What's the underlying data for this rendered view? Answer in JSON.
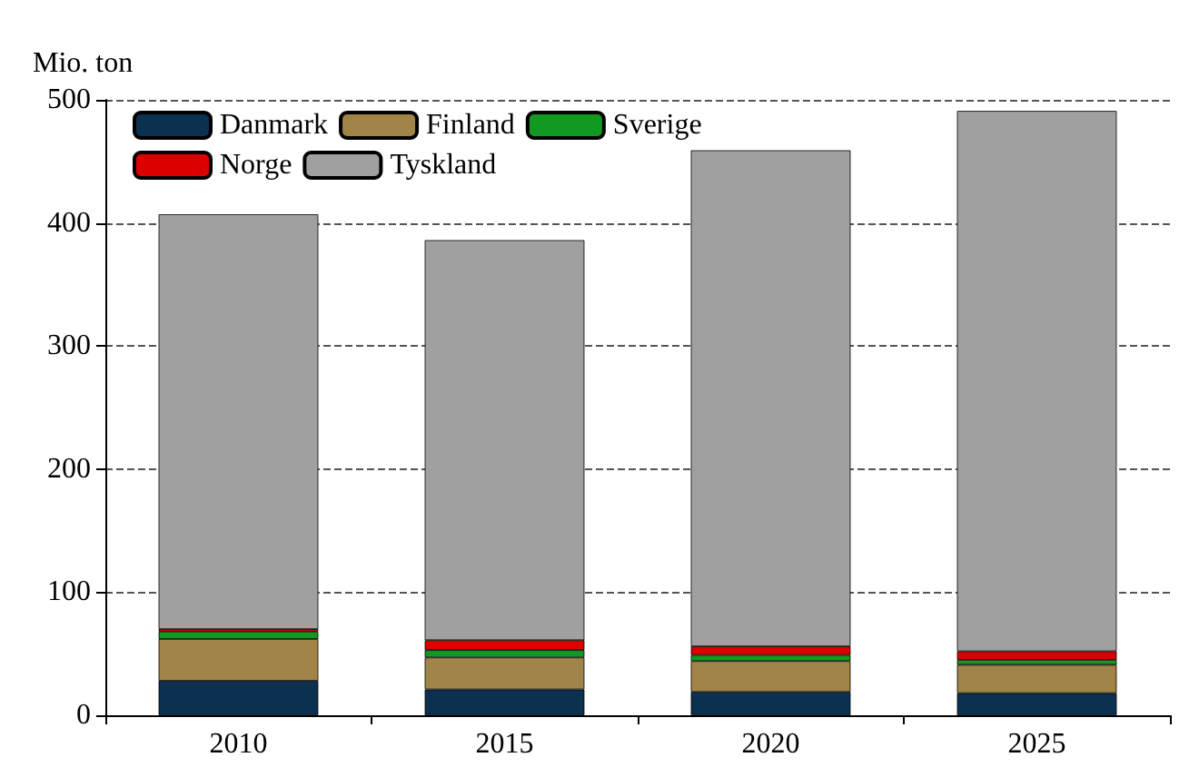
{
  "chart_data": {
    "type": "bar",
    "stacked": true,
    "ylabel": "Mio. ton",
    "categories": [
      "2010",
      "2015",
      "2020",
      "2025"
    ],
    "series": [
      {
        "name": "Danmark",
        "color": "#0b3050",
        "values": [
          28,
          21,
          19,
          18
        ]
      },
      {
        "name": "Finland",
        "color": "#a08448",
        "values": [
          34,
          26,
          25,
          23
        ]
      },
      {
        "name": "Sverige",
        "color": "#119922",
        "values": [
          6,
          6,
          5,
          4
        ]
      },
      {
        "name": "Norge",
        "color": "#dd0000",
        "values": [
          2,
          8,
          7,
          7
        ]
      },
      {
        "name": "Tyskland",
        "color": "#a0a0a0",
        "values": [
          337,
          325,
          403,
          439
        ]
      }
    ],
    "ylim": [
      0,
      500
    ],
    "yticks": [
      0,
      100,
      200,
      300,
      400,
      500
    ],
    "grid": "y",
    "legend": "top left"
  }
}
